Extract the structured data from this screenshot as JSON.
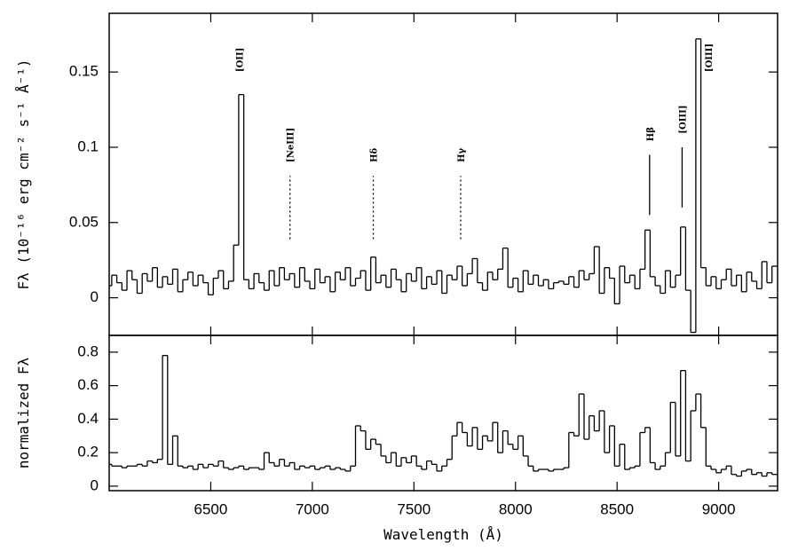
{
  "chart_data": [
    {
      "type": "step",
      "ylabel": "Fλ (10⁻¹⁶ erg cm⁻² s⁻¹ Å⁻¹)",
      "color": "#000000",
      "show_xtick_labels": false,
      "xlim": [
        6000,
        9290
      ],
      "ylim": [
        -0.025,
        0.189
      ],
      "xticks": [
        6500,
        7000,
        7500,
        8000,
        8500,
        9000
      ],
      "yticks": [
        0,
        0.05,
        0.1,
        0.15
      ],
      "x": [
        6000,
        6025,
        6050,
        6075,
        6100,
        6125,
        6150,
        6175,
        6200,
        6225,
        6250,
        6275,
        6300,
        6325,
        6350,
        6375,
        6400,
        6425,
        6450,
        6475,
        6500,
        6525,
        6550,
        6575,
        6600,
        6625,
        6650,
        6675,
        6700,
        6725,
        6750,
        6775,
        6800,
        6825,
        6850,
        6875,
        6900,
        6925,
        6950,
        6975,
        7000,
        7025,
        7050,
        7075,
        7100,
        7125,
        7150,
        7175,
        7200,
        7225,
        7250,
        7275,
        7300,
        7325,
        7350,
        7375,
        7400,
        7425,
        7450,
        7475,
        7500,
        7525,
        7550,
        7575,
        7600,
        7625,
        7650,
        7675,
        7700,
        7725,
        7750,
        7775,
        7800,
        7825,
        7850,
        7875,
        7900,
        7925,
        7950,
        7975,
        8000,
        8025,
        8050,
        8075,
        8100,
        8125,
        8150,
        8175,
        8200,
        8225,
        8250,
        8275,
        8300,
        8325,
        8350,
        8375,
        8400,
        8425,
        8450,
        8475,
        8500,
        8525,
        8550,
        8575,
        8600,
        8625,
        8650,
        8675,
        8700,
        8725,
        8750,
        8775,
        8800,
        8825,
        8850,
        8875,
        8900,
        8925,
        8950,
        8975,
        9000,
        9025,
        9050,
        9075,
        9100,
        9125,
        9150,
        9175,
        9200,
        9225,
        9250,
        9275
      ],
      "values": [
        0.008,
        0.015,
        0.01,
        0.005,
        0.018,
        0.012,
        0.003,
        0.016,
        0.011,
        0.02,
        0.007,
        0.014,
        0.009,
        0.019,
        0.004,
        0.012,
        0.017,
        0.008,
        0.015,
        0.01,
        0.002,
        0.013,
        0.018,
        0.006,
        0.011,
        0.035,
        0.135,
        0.012,
        0.006,
        0.016,
        0.01,
        0.005,
        0.018,
        0.008,
        0.02,
        0.012,
        0.016,
        0.007,
        0.02,
        0.011,
        0.006,
        0.019,
        0.01,
        0.014,
        0.004,
        0.017,
        0.012,
        0.02,
        0.008,
        0.013,
        0.018,
        0.005,
        0.027,
        0.01,
        0.015,
        0.007,
        0.019,
        0.012,
        0.004,
        0.016,
        0.011,
        0.02,
        0.006,
        0.014,
        0.009,
        0.018,
        0.003,
        0.015,
        0.012,
        0.021,
        0.008,
        0.016,
        0.026,
        0.01,
        0.005,
        0.017,
        0.012,
        0.019,
        0.033,
        0.007,
        0.013,
        0.004,
        0.018,
        0.009,
        0.015,
        0.008,
        0.012,
        0.006,
        0.01,
        0.011,
        0.009,
        0.014,
        0.007,
        0.018,
        0.012,
        0.016,
        0.034,
        0.003,
        0.02,
        0.013,
        -0.004,
        0.021,
        0.01,
        0.015,
        0.006,
        0.019,
        0.045,
        0.014,
        0.008,
        0.003,
        0.018,
        0.007,
        0.015,
        0.047,
        0.005,
        -0.023,
        0.172,
        0.02,
        0.008,
        0.014,
        0.006,
        0.012,
        0.019,
        0.008,
        0.015,
        0.004,
        0.017,
        0.011,
        0.006,
        0.024,
        0.01,
        0.021
      ],
      "annotations": [
        {
          "text": "[OII]",
          "x": 6640,
          "y": 0.15
        },
        {
          "text": "[NeIII]",
          "x": 6890,
          "y": 0.09,
          "line": [
            0.039,
            0.081
          ],
          "style": "dotted"
        },
        {
          "text": "Hδ",
          "x": 7300,
          "y": 0.09,
          "line": [
            0.039,
            0.081
          ],
          "style": "dotted"
        },
        {
          "text": "Hγ",
          "x": 7730,
          "y": 0.09,
          "line": [
            0.039,
            0.081
          ],
          "style": "dotted"
        },
        {
          "text": "Hβ",
          "x": 8660,
          "y": 0.104,
          "line": [
            0.055,
            0.095
          ],
          "style": "solid"
        },
        {
          "text": "[OIII]",
          "x": 8820,
          "y": 0.109,
          "line": [
            0.06,
            0.1
          ],
          "style": "solid"
        },
        {
          "text": "[OIII]",
          "x": 8950,
          "y": 0.15
        }
      ]
    },
    {
      "type": "step",
      "ylabel": "normalized Fλ",
      "xlabel": "Wavelength (Å)",
      "color": "#000000",
      "show_xtick_labels": true,
      "xlim": [
        6000,
        9290
      ],
      "ylim": [
        -0.027,
        0.9
      ],
      "xticks": [
        6500,
        7000,
        7500,
        8000,
        8500,
        9000
      ],
      "yticks": [
        0,
        0.2,
        0.4,
        0.6,
        0.8
      ],
      "x": [
        6000,
        6025,
        6050,
        6075,
        6100,
        6125,
        6150,
        6175,
        6200,
        6225,
        6250,
        6275,
        6300,
        6325,
        6350,
        6375,
        6400,
        6425,
        6450,
        6475,
        6500,
        6525,
        6550,
        6575,
        6600,
        6625,
        6650,
        6675,
        6700,
        6725,
        6750,
        6775,
        6800,
        6825,
        6850,
        6875,
        6900,
        6925,
        6950,
        6975,
        7000,
        7025,
        7050,
        7075,
        7100,
        7125,
        7150,
        7175,
        7200,
        7225,
        7250,
        7275,
        7300,
        7325,
        7350,
        7375,
        7400,
        7425,
        7450,
        7475,
        7500,
        7525,
        7550,
        7575,
        7600,
        7625,
        7650,
        7675,
        7700,
        7725,
        7750,
        7775,
        7800,
        7825,
        7850,
        7875,
        7900,
        7925,
        7950,
        7975,
        8000,
        8025,
        8050,
        8075,
        8100,
        8125,
        8150,
        8175,
        8200,
        8225,
        8250,
        8275,
        8300,
        8325,
        8350,
        8375,
        8400,
        8425,
        8450,
        8475,
        8500,
        8525,
        8550,
        8575,
        8600,
        8625,
        8650,
        8675,
        8700,
        8725,
        8750,
        8775,
        8800,
        8825,
        8850,
        8875,
        8900,
        8925,
        8950,
        8975,
        9000,
        9025,
        9050,
        9075,
        9100,
        9125,
        9150,
        9175,
        9200,
        9225,
        9250,
        9275
      ],
      "values": [
        0.13,
        0.12,
        0.12,
        0.11,
        0.12,
        0.12,
        0.13,
        0.12,
        0.15,
        0.14,
        0.16,
        0.78,
        0.13,
        0.3,
        0.12,
        0.11,
        0.12,
        0.1,
        0.13,
        0.11,
        0.13,
        0.12,
        0.15,
        0.11,
        0.1,
        0.11,
        0.12,
        0.1,
        0.11,
        0.11,
        0.1,
        0.2,
        0.14,
        0.12,
        0.16,
        0.12,
        0.14,
        0.1,
        0.12,
        0.11,
        0.12,
        0.1,
        0.11,
        0.12,
        0.1,
        0.11,
        0.1,
        0.09,
        0.12,
        0.36,
        0.33,
        0.22,
        0.28,
        0.25,
        0.18,
        0.14,
        0.2,
        0.12,
        0.17,
        0.14,
        0.18,
        0.12,
        0.1,
        0.15,
        0.13,
        0.09,
        0.12,
        0.16,
        0.3,
        0.38,
        0.32,
        0.24,
        0.35,
        0.22,
        0.3,
        0.27,
        0.38,
        0.2,
        0.33,
        0.25,
        0.22,
        0.3,
        0.18,
        0.12,
        0.09,
        0.1,
        0.1,
        0.09,
        0.1,
        0.1,
        0.11,
        0.32,
        0.3,
        0.55,
        0.28,
        0.42,
        0.33,
        0.45,
        0.2,
        0.36,
        0.12,
        0.25,
        0.1,
        0.11,
        0.12,
        0.32,
        0.35,
        0.14,
        0.1,
        0.12,
        0.2,
        0.5,
        0.18,
        0.69,
        0.15,
        0.45,
        0.55,
        0.35,
        0.12,
        0.1,
        0.08,
        0.1,
        0.12,
        0.07,
        0.06,
        0.09,
        0.1,
        0.07,
        0.08,
        0.06,
        0.08,
        0.07
      ]
    }
  ]
}
